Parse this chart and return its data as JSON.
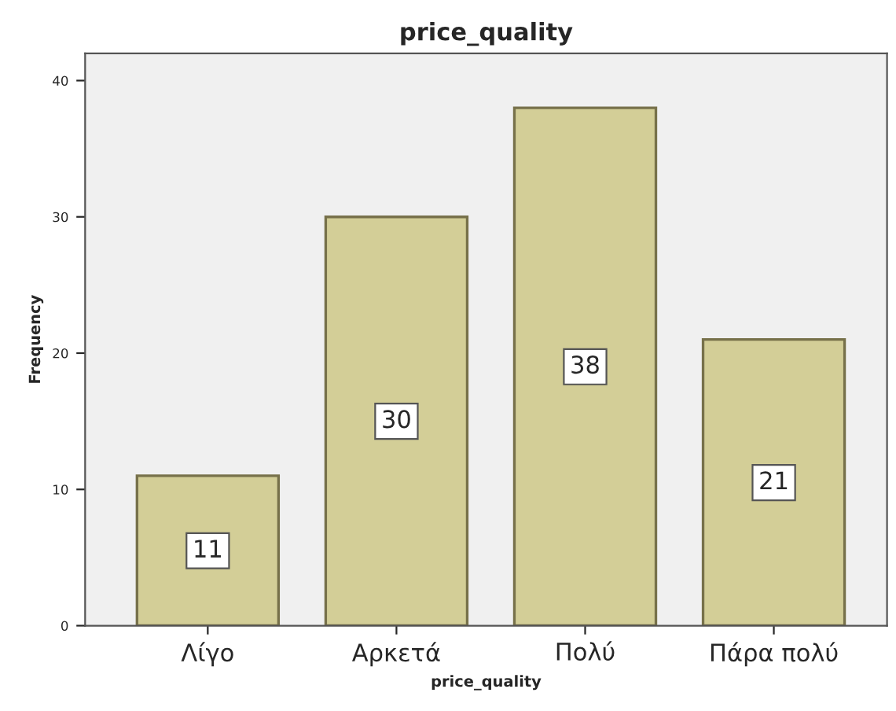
{
  "chart_data": {
    "type": "bar",
    "title": "price_quality",
    "xlabel": "price_quality",
    "ylabel": "Frequency",
    "categories": [
      "Λίγο",
      "Αρκετά",
      "Πολύ",
      "Πάρα πολύ"
    ],
    "values": [
      11,
      30,
      38,
      21
    ],
    "color": "#d3ce97",
    "ylim": [
      0,
      42
    ],
    "yticks": [
      0,
      10,
      20,
      30,
      40
    ],
    "grid": false,
    "data_labels": true
  }
}
